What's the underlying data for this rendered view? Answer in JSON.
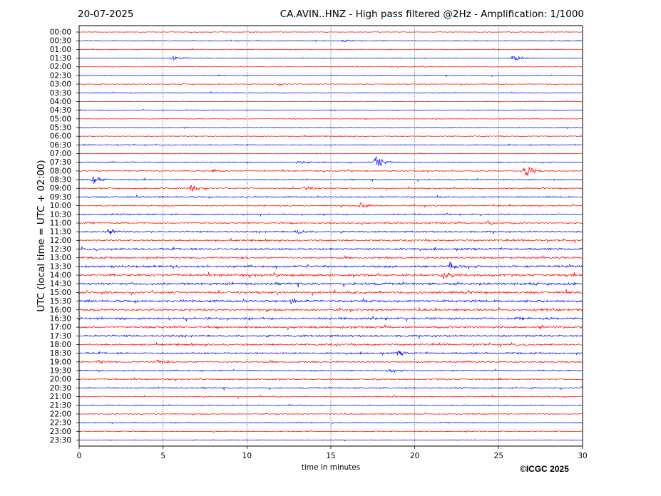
{
  "header": {
    "date": "20-07-2025",
    "title": "CA.AVIN..HNZ - High pass filtered @2Hz - Amplification: 1/1000"
  },
  "footer": {
    "copyright": "©ICGC 2025"
  },
  "colors": {
    "trace_a": "#ff0000",
    "trace_b": "#0000ff",
    "grid": "#000000",
    "frame": "#000000"
  },
  "chart_data": {
    "type": "line",
    "title": "CA.AVIN..HNZ - High pass filtered @2Hz - Amplification: 1/1000",
    "xlabel": "time in minutes",
    "ylabel": "UTC (local time = UTC + 02:00)",
    "xlim": [
      0,
      30
    ],
    "x_ticks": [
      0,
      5,
      10,
      15,
      20,
      25,
      30
    ],
    "grid": "vertical dotted lines at 5, 10, 15, 20, 25",
    "row_interval_minutes": 30,
    "rows": [
      "00:00",
      "00:30",
      "01:00",
      "01:30",
      "02:00",
      "02:30",
      "03:00",
      "03:30",
      "04:00",
      "04:30",
      "05:00",
      "05:30",
      "06:00",
      "06:30",
      "07:00",
      "07:30",
      "08:00",
      "08:30",
      "09:00",
      "09:30",
      "10:00",
      "10:30",
      "11:00",
      "11:30",
      "12:00",
      "12:30",
      "13:00",
      "13:30",
      "14:00",
      "14:30",
      "15:00",
      "15:30",
      "16:00",
      "16:30",
      "17:00",
      "17:30",
      "18:00",
      "18:30",
      "19:00",
      "19:30",
      "20:00",
      "20:30",
      "21:00",
      "21:30",
      "22:00",
      "22:30",
      "23:00",
      "23:30"
    ],
    "row_colors": [
      "red",
      "blue",
      "red",
      "blue",
      "red",
      "blue",
      "red",
      "blue",
      "red",
      "blue",
      "red",
      "blue",
      "red",
      "blue",
      "red",
      "blue",
      "red",
      "blue",
      "red",
      "blue",
      "red",
      "blue",
      "red",
      "blue",
      "red",
      "blue",
      "red",
      "blue",
      "red",
      "blue",
      "red",
      "blue",
      "red",
      "blue",
      "red",
      "blue",
      "red",
      "blue",
      "red",
      "blue",
      "red",
      "blue",
      "red",
      "blue",
      "red",
      "blue",
      "red",
      "blue"
    ],
    "noise_level": [
      0.6,
      0.6,
      0.6,
      0.6,
      0.6,
      0.6,
      0.6,
      0.6,
      0.6,
      0.6,
      0.6,
      0.6,
      0.7,
      0.7,
      0.7,
      0.9,
      0.9,
      0.9,
      1.0,
      1.1,
      1.1,
      1.1,
      1.1,
      1.3,
      1.4,
      1.6,
      1.6,
      1.8,
      1.9,
      1.9,
      1.8,
      1.9,
      1.8,
      1.8,
      1.6,
      1.6,
      1.4,
      1.4,
      1.3,
      1.1,
      1.0,
      1.0,
      0.9,
      0.9,
      0.8,
      0.7,
      0.7,
      0.6
    ],
    "events": [
      {
        "row": "00:30",
        "minute": 15.8,
        "amplitude": 1.5
      },
      {
        "row": "01:30",
        "minute": 5.6,
        "amplitude": 2.5
      },
      {
        "row": "01:30",
        "minute": 25.9,
        "amplitude": 5
      },
      {
        "row": "03:00",
        "minute": 12.0,
        "amplitude": 1.5
      },
      {
        "row": "07:30",
        "minute": 13.1,
        "amplitude": 2.5
      },
      {
        "row": "07:30",
        "minute": 17.7,
        "amplitude": 11
      },
      {
        "row": "08:00",
        "minute": 8.0,
        "amplitude": 2
      },
      {
        "row": "08:00",
        "minute": 26.6,
        "amplitude": 12
      },
      {
        "row": "08:30",
        "minute": 0.9,
        "amplitude": 6
      },
      {
        "row": "09:00",
        "minute": 6.7,
        "amplitude": 6
      },
      {
        "row": "09:00",
        "minute": 13.5,
        "amplitude": 3
      },
      {
        "row": "10:00",
        "minute": 16.8,
        "amplitude": 4
      },
      {
        "row": "11:00",
        "minute": 24.4,
        "amplitude": 3
      },
      {
        "row": "11:30",
        "minute": 1.7,
        "amplitude": 3
      },
      {
        "row": "11:30",
        "minute": 13.0,
        "amplitude": 3
      },
      {
        "row": "13:30",
        "minute": 22.1,
        "amplitude": 5
      },
      {
        "row": "14:00",
        "minute": 21.7,
        "amplitude": 5
      },
      {
        "row": "15:30",
        "minute": 12.7,
        "amplitude": 3
      },
      {
        "row": "18:30",
        "minute": 19.0,
        "amplitude": 3
      },
      {
        "row": "19:00",
        "minute": 1.1,
        "amplitude": 3
      },
      {
        "row": "19:00",
        "minute": 4.7,
        "amplitude": 3
      },
      {
        "row": "19:30",
        "minute": 18.5,
        "amplitude": 2
      }
    ]
  }
}
